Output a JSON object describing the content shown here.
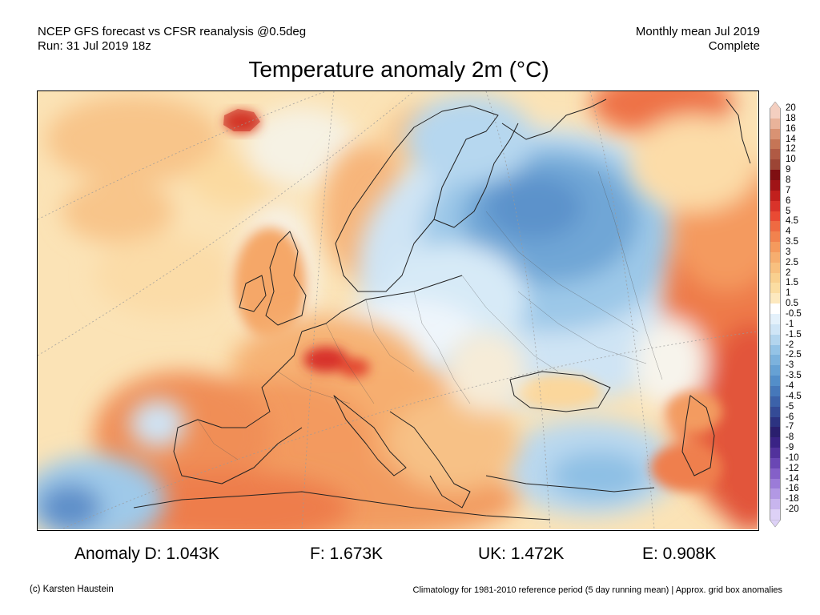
{
  "header": {
    "left_line1": "NCEP GFS forecast vs CFSR reanalysis @0.5deg",
    "left_line2": "Run: 31 Jul 2019 18z",
    "right_line1": "Monthly mean Jul 2019",
    "right_line2": "Complete"
  },
  "title": "Temperature anomaly 2m (°C)",
  "legend": {
    "labels": [
      "20",
      "18",
      "16",
      "14",
      "12",
      "10",
      "9",
      "8",
      "7",
      "6",
      "5",
      "4.5",
      "4",
      "3.5",
      "3",
      "2.5",
      "2",
      "1.5",
      "1",
      "0.5",
      "-0.5",
      "-1",
      "-1.5",
      "-2",
      "-2.5",
      "-3",
      "-3.5",
      "-4",
      "-4.5",
      "-5",
      "-6",
      "-7",
      "-8",
      "-9",
      "-10",
      "-12",
      "-14",
      "-16",
      "-18",
      "-20"
    ],
    "colors": [
      "#f4cfc0",
      "#e9b39a",
      "#d99273",
      "#c57556",
      "#b05a44",
      "#9c4535",
      "#7f0f12",
      "#a01417",
      "#c1201d",
      "#d9332a",
      "#e94a34",
      "#ef6a42",
      "#f2824e",
      "#f59a5d",
      "#f6ae6f",
      "#f8c07f",
      "#f9d08f",
      "#fbdda2",
      "#fde9bf",
      "#ffffff",
      "#e4f1fb",
      "#cfe5f6",
      "#b3d5ee",
      "#94c3e6",
      "#7cb2dd",
      "#66a1d4",
      "#538ec9",
      "#4678ba",
      "#3c62a9",
      "#344b96",
      "#2c3381",
      "#2a1f6e",
      "#3a2385",
      "#52329c",
      "#6a47b4",
      "#8460c8",
      "#9b7bd8",
      "#b298e4",
      "#c8b5ee",
      "#ddd1f6"
    ]
  },
  "stats": {
    "d": "Anomaly D: 1.043K",
    "f": "F: 1.673K",
    "uk": "UK: 1.472K",
    "e": "E: 0.908K"
  },
  "footer": {
    "credit": "(c) Karsten Haustein",
    "climatology": "Climatology for 1981-2010 reference period (5 day running mean) | Approx. grid box anomalies"
  }
}
